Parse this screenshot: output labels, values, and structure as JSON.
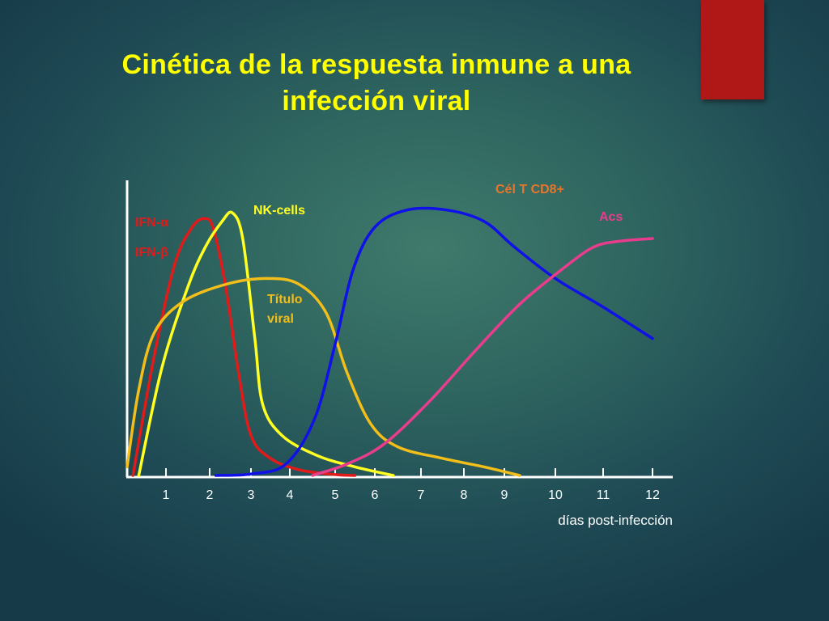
{
  "slide": {
    "title_line1": "Cinética de la respuesta inmune a una",
    "title_line2": "infección viral"
  },
  "colors": {
    "title": "#ffff00",
    "accent_bar": "#b01818",
    "ifn": "#e11a1a",
    "nk": "#ffff22",
    "titulo_viral": "#f2be1a",
    "cd8": "#1010e8",
    "acs": "#e83c8c",
    "axis": "#ffffff"
  },
  "chart_data": {
    "type": "line",
    "title": "Cinética de la respuesta inmune a una infección viral",
    "xlabel": "días post-infección",
    "ylabel": "",
    "x_ticks": [
      1,
      2,
      3,
      4,
      5,
      6,
      7,
      8,
      9,
      10,
      11,
      12
    ],
    "xlim": [
      0,
      12.5
    ],
    "ylim": [
      0,
      100
    ],
    "y_ticks_shown": false,
    "grid": false,
    "legend": "inline labels",
    "series": [
      {
        "key": "ifn",
        "labels": [
          "IFN-α",
          "IFN-β"
        ],
        "color": "#e11a1a",
        "points": [
          [
            0.15,
            0
          ],
          [
            0.7,
            42
          ],
          [
            1.2,
            74
          ],
          [
            1.6,
            87
          ],
          [
            1.9,
            90
          ],
          [
            2.1,
            86
          ],
          [
            2.4,
            65
          ],
          [
            2.7,
            36
          ],
          [
            3.0,
            14
          ],
          [
            3.5,
            6
          ],
          [
            4.2,
            2
          ],
          [
            5.0,
            0.3
          ],
          [
            5.5,
            0
          ]
        ]
      },
      {
        "key": "nk",
        "labels": [
          "NK-cells"
        ],
        "color": "#ffff22",
        "points": [
          [
            0.3,
            0
          ],
          [
            0.9,
            38
          ],
          [
            1.5,
            66
          ],
          [
            1.9,
            80
          ],
          [
            2.3,
            89
          ],
          [
            2.55,
            92
          ],
          [
            2.8,
            83
          ],
          [
            3.1,
            48
          ],
          [
            3.3,
            25
          ],
          [
            3.8,
            14
          ],
          [
            4.6,
            7
          ],
          [
            5.5,
            3
          ],
          [
            6.4,
            0
          ]
        ]
      },
      {
        "key": "titulo_viral",
        "labels": [
          "Título",
          "viral"
        ],
        "color": "#f2be1a",
        "points": [
          [
            0,
            3
          ],
          [
            0.3,
            30
          ],
          [
            0.7,
            50
          ],
          [
            1.4,
            61
          ],
          [
            2.4,
            67
          ],
          [
            3.4,
            69
          ],
          [
            4.2,
            67
          ],
          [
            4.8,
            57
          ],
          [
            5.3,
            36
          ],
          [
            5.9,
            18
          ],
          [
            6.5,
            10
          ],
          [
            7.5,
            6
          ],
          [
            8.5,
            3
          ],
          [
            9.3,
            0
          ]
        ]
      },
      {
        "key": "cd8",
        "labels": [
          "Cél T CD8+"
        ],
        "color": "#1010e8",
        "points": [
          [
            2.15,
            0
          ],
          [
            3.0,
            0.5
          ],
          [
            3.9,
            4
          ],
          [
            4.55,
            20
          ],
          [
            5.0,
            46
          ],
          [
            5.45,
            72
          ],
          [
            6.0,
            87
          ],
          [
            6.7,
            93
          ],
          [
            7.6,
            93
          ],
          [
            8.5,
            89
          ],
          [
            9.2,
            80
          ],
          [
            10.0,
            69
          ],
          [
            11.0,
            59
          ],
          [
            12.0,
            48
          ]
        ]
      },
      {
        "key": "acs",
        "labels": [
          "Acs"
        ],
        "color": "#e83c8c",
        "points": [
          [
            4.5,
            0
          ],
          [
            5.3,
            4
          ],
          [
            6.2,
            11
          ],
          [
            7.2,
            26
          ],
          [
            8.3,
            44
          ],
          [
            9.3,
            60
          ],
          [
            10.2,
            73
          ],
          [
            10.8,
            80
          ],
          [
            11.3,
            82
          ],
          [
            12.0,
            83
          ]
        ]
      }
    ],
    "annotations": [
      {
        "text": "IFN-α",
        "series": "ifn"
      },
      {
        "text": "IFN-β",
        "series": "ifn"
      },
      {
        "text": "NK-cells",
        "series": "nk"
      },
      {
        "text": "Título",
        "series": "titulo_viral"
      },
      {
        "text": "viral",
        "series": "titulo_viral"
      },
      {
        "text": "Cél T CD8+",
        "series": "cd8"
      },
      {
        "text": "Acs",
        "series": "acs"
      }
    ]
  }
}
